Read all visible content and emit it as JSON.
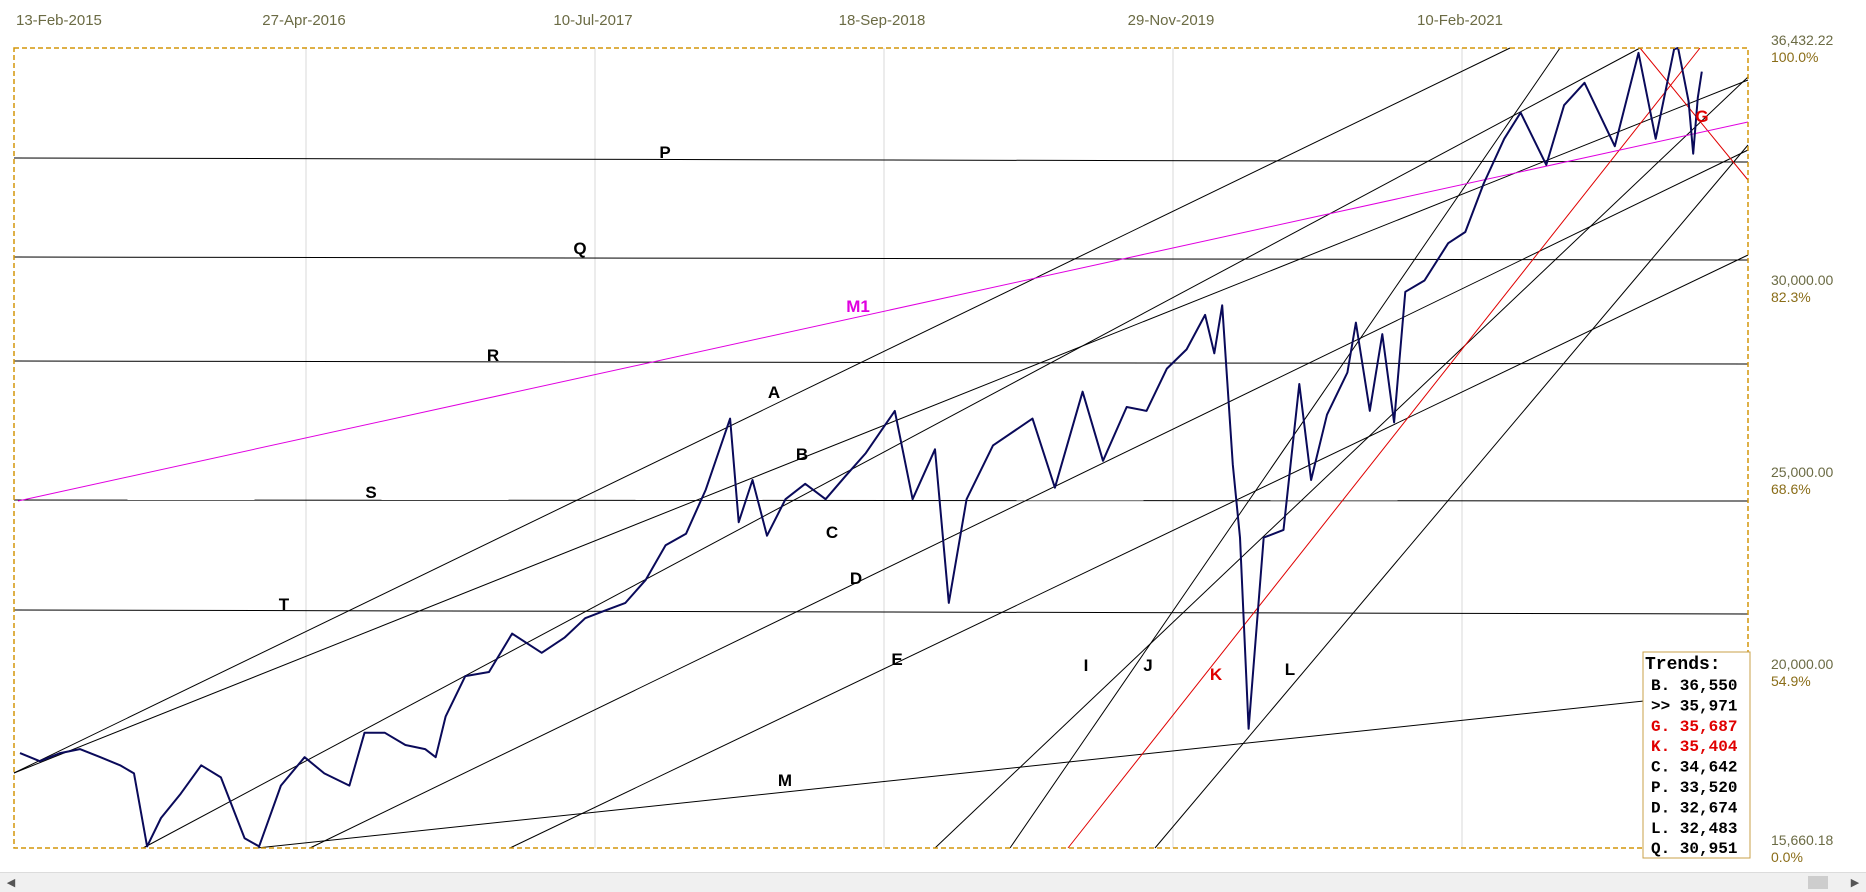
{
  "chart_data": {
    "type": "line",
    "title": "",
    "xlabel": "",
    "ylabel": "",
    "x_ticks": [
      "13-Feb-2015",
      "27-Apr-2016",
      "10-Jul-2017",
      "18-Sep-2018",
      "29-Nov-2019",
      "10-Feb-2021"
    ],
    "y_ticks": [
      {
        "price": "36,432.22",
        "pct": "100.0%",
        "value": 36432.22
      },
      {
        "price": "30,000.00",
        "pct": "82.3%",
        "value": 30000
      },
      {
        "price": "25,000.00",
        "pct": "68.6%",
        "value": 25000
      },
      {
        "price": "20,000.00",
        "pct": "54.9%",
        "value": 20000
      },
      {
        "price": "15,660.18",
        "pct": "0.0%",
        "value": 15660.18
      }
    ],
    "ylim": [
      15660.18,
      36432.22
    ],
    "grid": "vertical",
    "series": [
      {
        "color": "#0a0a5a",
        "values": [
          [
            "2015-02-13",
            18000
          ],
          [
            "2015-03-15",
            17800
          ],
          [
            "2015-04-15",
            18000
          ],
          [
            "2015-05-15",
            18100
          ],
          [
            "2015-06-15",
            17900
          ],
          [
            "2015-07-15",
            17700
          ],
          [
            "2015-08-05",
            17500
          ],
          [
            "2015-08-25",
            15700
          ],
          [
            "2015-09-15",
            16400
          ],
          [
            "2015-10-15",
            17000
          ],
          [
            "2015-11-15",
            17700
          ],
          [
            "2015-12-15",
            17400
          ],
          [
            "2016-01-20",
            15900
          ],
          [
            "2016-02-11",
            15700
          ],
          [
            "2016-03-15",
            17200
          ],
          [
            "2016-04-20",
            17900
          ],
          [
            "2016-05-20",
            17500
          ],
          [
            "2016-06-27",
            17200
          ],
          [
            "2016-07-20",
            18500
          ],
          [
            "2016-08-20",
            18500
          ],
          [
            "2016-09-20",
            18200
          ],
          [
            "2016-10-20",
            18100
          ],
          [
            "2016-11-05",
            17900
          ],
          [
            "2016-11-20",
            18900
          ],
          [
            "2016-12-20",
            19900
          ],
          [
            "2017-01-25",
            20000
          ],
          [
            "2017-03-01",
            21000
          ],
          [
            "2017-04-15",
            20500
          ],
          [
            "2017-05-20",
            20900
          ],
          [
            "2017-06-20",
            21400
          ],
          [
            "2017-07-20",
            21600
          ],
          [
            "2017-08-20",
            21800
          ],
          [
            "2017-09-20",
            22400
          ],
          [
            "2017-10-20",
            23300
          ],
          [
            "2017-11-20",
            23600
          ],
          [
            "2017-12-20",
            24750
          ],
          [
            "2018-01-26",
            26600
          ],
          [
            "2018-02-08",
            23900
          ],
          [
            "2018-03-01",
            25000
          ],
          [
            "2018-03-23",
            23550
          ],
          [
            "2018-04-20",
            24500
          ],
          [
            "2018-05-20",
            24900
          ],
          [
            "2018-06-20",
            24500
          ],
          [
            "2018-07-20",
            25100
          ],
          [
            "2018-08-20",
            25700
          ],
          [
            "2018-10-03",
            26800
          ],
          [
            "2018-10-30",
            24500
          ],
          [
            "2018-12-03",
            25800
          ],
          [
            "2018-12-24",
            21800
          ],
          [
            "2019-01-20",
            24500
          ],
          [
            "2019-03-01",
            25900
          ],
          [
            "2019-04-30",
            26600
          ],
          [
            "2019-06-03",
            24800
          ],
          [
            "2019-07-15",
            27300
          ],
          [
            "2019-08-15",
            25500
          ],
          [
            "2019-09-20",
            26900
          ],
          [
            "2019-10-20",
            26800
          ],
          [
            "2019-11-20",
            27900
          ],
          [
            "2019-12-20",
            28400
          ],
          [
            "2020-01-17",
            29300
          ],
          [
            "2020-01-31",
            28300
          ],
          [
            "2020-02-12",
            29550
          ],
          [
            "2020-02-28",
            25400
          ],
          [
            "2020-03-10",
            23500
          ],
          [
            "2020-03-23",
            18600
          ],
          [
            "2020-04-15",
            23500
          ],
          [
            "2020-05-15",
            23700
          ],
          [
            "2020-06-08",
            27500
          ],
          [
            "2020-06-26",
            25000
          ],
          [
            "2020-07-20",
            26700
          ],
          [
            "2020-08-20",
            27800
          ],
          [
            "2020-09-02",
            29100
          ],
          [
            "2020-09-23",
            26800
          ],
          [
            "2020-10-12",
            28800
          ],
          [
            "2020-10-30",
            26500
          ],
          [
            "2020-11-16",
            29900
          ],
          [
            "2020-12-15",
            30200
          ],
          [
            "2021-01-20",
            31200
          ],
          [
            "2021-02-15",
            31500
          ],
          [
            "2021-03-15",
            32800
          ],
          [
            "2021-04-15",
            34000
          ],
          [
            "2021-05-10",
            34700
          ],
          [
            "2021-06-18",
            33300
          ],
          [
            "2021-07-15",
            34900
          ],
          [
            "2021-08-15",
            35500
          ],
          [
            "2021-09-30",
            33800
          ],
          [
            "2021-11-05",
            36300
          ],
          [
            "2021-12-01",
            34000
          ],
          [
            "2021-12-29",
            36400
          ],
          [
            "2022-01-04",
            36432
          ],
          [
            "2022-01-20",
            35000
          ],
          [
            "2022-01-27",
            33600
          ],
          [
            "2022-02-03",
            35100
          ],
          [
            "2022-02-09",
            35800
          ]
        ]
      }
    ],
    "trendline_labels": [
      {
        "label": "A",
        "color": "#000000"
      },
      {
        "label": "B",
        "color": "#000000"
      },
      {
        "label": "C",
        "color": "#000000"
      },
      {
        "label": "D",
        "color": "#000000"
      },
      {
        "label": "E",
        "color": "#000000"
      },
      {
        "label": "I",
        "color": "#000000"
      },
      {
        "label": "J",
        "color": "#000000"
      },
      {
        "label": "K",
        "color": "#e00000"
      },
      {
        "label": "L",
        "color": "#000000"
      },
      {
        "label": "M",
        "color": "#000000"
      },
      {
        "label": "M1",
        "color": "#e000e0"
      },
      {
        "label": "G",
        "color": "#e00000"
      },
      {
        "label": "P",
        "color": "#000000"
      },
      {
        "label": "Q",
        "color": "#000000"
      },
      {
        "label": "R",
        "color": "#000000"
      },
      {
        "label": "S",
        "color": "#000000"
      },
      {
        "label": "T",
        "color": "#000000"
      }
    ],
    "trends_box": {
      "title": "Trends:",
      "rows": [
        {
          "text": "B. 36,550",
          "color": "#000000"
        },
        {
          "text": ">> 35,971",
          "color": "#000000"
        },
        {
          "text": "G. 35,687",
          "color": "#e00000"
        },
        {
          "text": "K. 35,404",
          "color": "#e00000"
        },
        {
          "text": "C. 34,642",
          "color": "#000000"
        },
        {
          "text": "P. 33,520",
          "color": "#000000"
        },
        {
          "text": "D. 32,674",
          "color": "#000000"
        },
        {
          "text": "L. 32,483",
          "color": "#000000"
        },
        {
          "text": "Q. 30,951",
          "color": "#000000"
        }
      ]
    }
  },
  "colors": {
    "border": "#d4960a",
    "grid": "#d8d8d8",
    "price": "#0a0a5a",
    "black_line": "#000000",
    "red_line": "#e00000",
    "magenta_line": "#e000e0"
  },
  "scrollbar": {
    "left_icon": "scroll-left-icon",
    "right_icon": "scroll-right-icon"
  }
}
